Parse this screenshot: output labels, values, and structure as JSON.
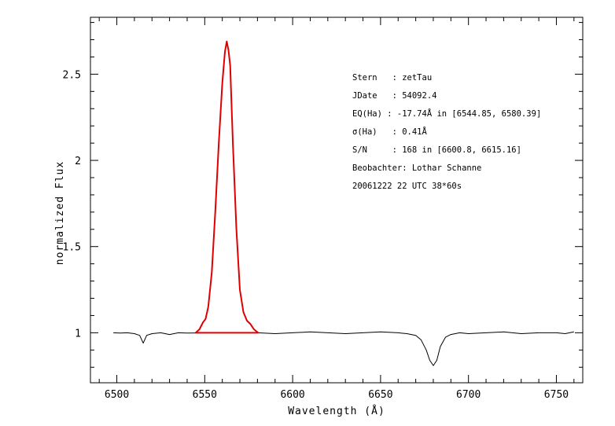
{
  "chart_data": {
    "type": "line",
    "xlabel": "Wavelength (Å)",
    "ylabel": "normalized Flux",
    "xlim": [
      6485,
      6765
    ],
    "ylim": [
      0.71,
      2.83
    ],
    "x_ticks": [
      6500,
      6550,
      6600,
      6650,
      6700,
      6750
    ],
    "x_tick_labels": [
      "6500",
      "6550",
      "6600",
      "6650",
      "6700",
      "6750"
    ],
    "y_ticks": [
      1,
      1.5,
      2,
      2.5
    ],
    "y_tick_labels": [
      "1",
      "1.5",
      "2",
      "2.5"
    ],
    "grid": false,
    "annotations": [
      "Stern   : zetTau",
      "JDate   : 54092.4",
      "EQ(Ha) : -17.74Å in [6544.85, 6580.39]",
      "σ(Ha)   : 0.41Å",
      "S/N     : 168 in [6600.8, 6615.16]",
      "Beobachter: Lothar Schanne",
      "20061222 22 UTC 38*60s"
    ],
    "series": [
      {
        "color": "#000000",
        "x": [
          6498,
          6502,
          6506,
          6510,
          6513,
          6515,
          6517,
          6520,
          6525,
          6530,
          6535,
          6540,
          6545,
          6560,
          6580,
          6590,
          6600,
          6610,
          6620,
          6630,
          6640,
          6650,
          6660,
          6665,
          6670,
          6673,
          6676,
          6678,
          6680,
          6682,
          6684,
          6687,
          6690,
          6695,
          6700,
          6710,
          6720,
          6730,
          6740,
          6750,
          6755,
          6760
        ],
        "y": [
          1.0,
          0.998,
          1.0,
          0.995,
          0.985,
          0.94,
          0.985,
          0.995,
          1.0,
          0.99,
          1.0,
          0.998,
          0.999,
          1.0,
          1.0,
          0.995,
          1.0,
          1.005,
          1.0,
          0.995,
          1.0,
          1.005,
          1.0,
          0.995,
          0.985,
          0.96,
          0.9,
          0.84,
          0.81,
          0.84,
          0.92,
          0.975,
          0.99,
          1.0,
          0.995,
          1.0,
          1.005,
          0.995,
          1.0,
          1.0,
          0.995,
          1.005
        ]
      },
      {
        "color": "#e00000",
        "x": [
          6544.85,
          6547,
          6549,
          6550.5,
          6552,
          6554,
          6556,
          6558,
          6560,
          6561.5,
          6562.5,
          6563.5,
          6564.5,
          6566,
          6568,
          6570,
          6572,
          6574,
          6576,
          6578,
          6580.39,
          6544.85
        ],
        "y": [
          1.0,
          1.02,
          1.06,
          1.08,
          1.15,
          1.35,
          1.7,
          2.1,
          2.45,
          2.63,
          2.69,
          2.64,
          2.55,
          2.1,
          1.6,
          1.25,
          1.12,
          1.07,
          1.05,
          1.02,
          1.0,
          1.0
        ]
      }
    ]
  }
}
